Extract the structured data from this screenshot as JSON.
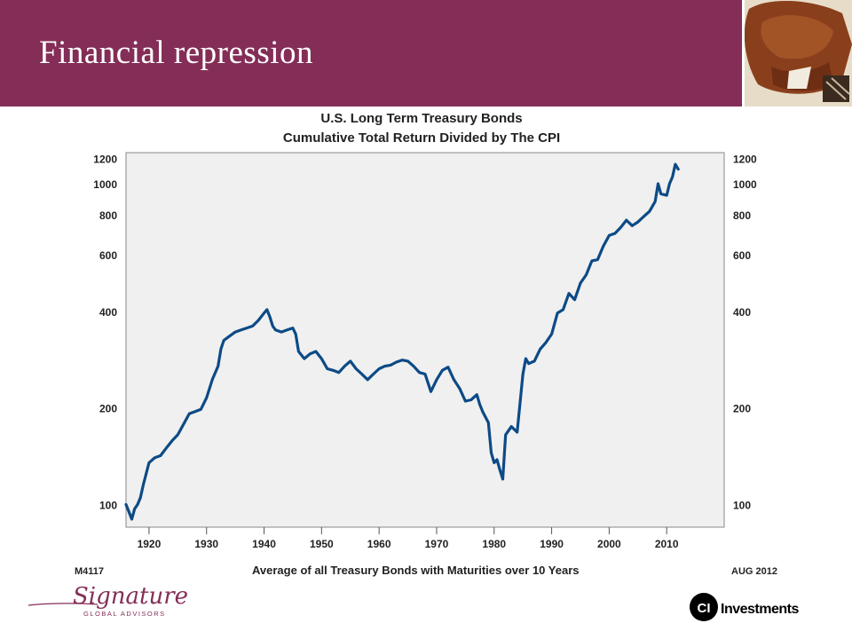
{
  "slide": {
    "title": "Financial repression",
    "footer_code": "M4117",
    "footer_date": "AUG 2012"
  },
  "logos": {
    "signature_script": "Signature",
    "signature_sub": "GLOBAL ADVISORS",
    "ci_mark": "CI",
    "ci_text": "Investments"
  },
  "colors": {
    "header": "#842e57",
    "line": "#0d4a86",
    "plot_bg": "#f0f0f0"
  },
  "chart_data": {
    "type": "line",
    "title": "U.S. Long Term Treasury Bonds",
    "subtitle": "Cumulative Total Return Divided by The CPI",
    "xlabel": "Average of all Treasury Bonds with Maturities over 10 Years",
    "ylabel": "",
    "y_scale": "log",
    "ylim": [
      85,
      1250
    ],
    "xlim": [
      1916,
      2020
    ],
    "y_ticks": [
      100,
      200,
      400,
      600,
      800,
      1000,
      1200
    ],
    "x_ticks": [
      1920,
      1930,
      1940,
      1950,
      1960,
      1970,
      1980,
      1990,
      2000,
      2010
    ],
    "grid": false,
    "series": [
      {
        "x": [
          1916.0,
          1916.5,
          1917.0,
          1917.5,
          1918.0,
          1918.5,
          1919.0,
          1920.0,
          1921.0,
          1922.0,
          1923.0,
          1924.0,
          1925.0,
          1926.0,
          1927.0,
          1928.0,
          1929.0,
          1930.0,
          1931.0,
          1932.0,
          1932.5,
          1933.0,
          1934.0,
          1935.0,
          1936.0,
          1937.0,
          1938.0,
          1939.0,
          1940.0,
          1940.5,
          1941.0,
          1941.5,
          1942.0,
          1943.0,
          1944.0,
          1945.0,
          1945.5,
          1946.0,
          1947.0,
          1948.0,
          1949.0,
          1950.0,
          1951.0,
          1952.0,
          1953.0,
          1954.0,
          1955.0,
          1956.0,
          1957.0,
          1958.0,
          1959.0,
          1960.0,
          1961.0,
          1962.0,
          1963.0,
          1964.0,
          1965.0,
          1966.0,
          1967.0,
          1968.0,
          1969.0,
          1970.0,
          1971.0,
          1972.0,
          1973.0,
          1974.0,
          1975.0,
          1976.0,
          1977.0,
          1977.5,
          1978.0,
          1979.0,
          1979.5,
          1980.0,
          1980.5,
          1981.0,
          1981.5,
          1982.0,
          1983.0,
          1984.0,
          1985.0,
          1985.5,
          1986.0,
          1987.0,
          1988.0,
          1989.0,
          1990.0,
          1991.0,
          1992.0,
          1993.0,
          1994.0,
          1995.0,
          1996.0,
          1997.0,
          1998.0,
          1999.0,
          2000.0,
          2001.0,
          2002.0,
          2003.0,
          2004.0,
          2005.0,
          2006.0,
          2007.0,
          2008.0,
          2008.5,
          2009.0,
          2010.0,
          2010.5,
          2011.0,
          2011.5,
          2012.0
        ],
        "y": [
          100,
          95,
          90,
          97,
          100,
          105,
          115,
          135,
          140,
          142,
          150,
          158,
          165,
          178,
          192,
          195,
          198,
          215,
          245,
          270,
          305,
          325,
          335,
          345,
          350,
          355,
          360,
          375,
          395,
          405,
          385,
          360,
          350,
          345,
          350,
          355,
          340,
          300,
          285,
          295,
          300,
          285,
          265,
          262,
          258,
          270,
          280,
          265,
          255,
          245,
          255,
          265,
          270,
          272,
          278,
          282,
          280,
          270,
          258,
          255,
          225,
          245,
          262,
          268,
          245,
          230,
          210,
          212,
          220,
          205,
          195,
          180,
          145,
          135,
          138,
          128,
          120,
          165,
          175,
          168,
          255,
          285,
          275,
          280,
          305,
          320,
          340,
          395,
          405,
          455,
          435,
          490,
          520,
          575,
          580,
          640,
          690,
          700,
          730,
          770,
          740,
          760,
          790,
          820,
          880,
          1000,
          930,
          920,
          1000,
          1050,
          1150,
          1110
        ]
      }
    ]
  }
}
